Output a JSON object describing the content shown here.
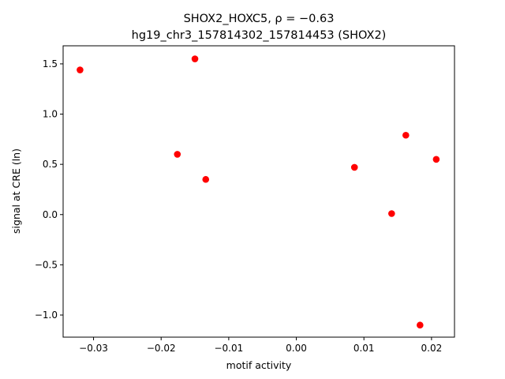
{
  "chart_data": {
    "type": "scatter",
    "title_line1": "SHOX2_HOXC5, ρ = −0.63",
    "title_line2": "hg19_chr3_157814302_157814453 (SHOX2)",
    "xlabel": "motif activity",
    "ylabel": "signal at CRE (ln)",
    "xlim": [
      -0.0345,
      0.0234
    ],
    "ylim": [
      -1.22,
      1.68
    ],
    "xticks": [
      -0.03,
      -0.02,
      -0.01,
      0.0,
      0.01,
      0.02
    ],
    "xtick_labels": [
      "−0.03",
      "−0.02",
      "−0.01",
      "0.00",
      "0.01",
      "0.02"
    ],
    "yticks": [
      -1.0,
      -0.5,
      0.0,
      0.5,
      1.0,
      1.5
    ],
    "ytick_labels": [
      "−1.0",
      "−0.5",
      "0.0",
      "0.5",
      "1.0",
      "1.5"
    ],
    "grid": false,
    "marker_color": "#ff0000",
    "points": [
      {
        "x": -0.032,
        "y": 1.44
      },
      {
        "x": -0.015,
        "y": 1.55
      },
      {
        "x": -0.0176,
        "y": 0.6
      },
      {
        "x": -0.0134,
        "y": 0.35
      },
      {
        "x": 0.0086,
        "y": 0.47
      },
      {
        "x": 0.0141,
        "y": 0.01
      },
      {
        "x": 0.0162,
        "y": 0.79
      },
      {
        "x": 0.0207,
        "y": 0.55
      },
      {
        "x": 0.0183,
        "y": -1.1
      }
    ]
  }
}
